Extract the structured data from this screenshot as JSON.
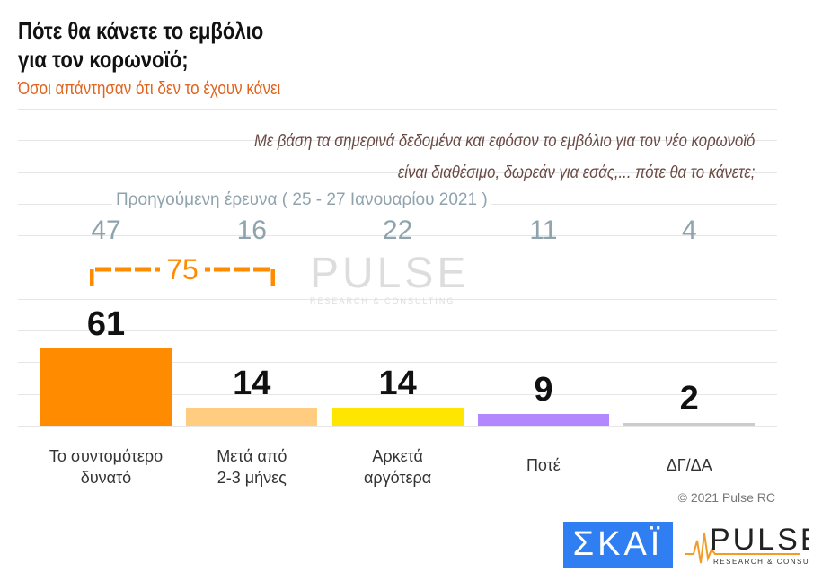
{
  "title_line1": "Πότε θα κάνετε το εμβόλιο",
  "title_line2": "για τον κορωνοϊό;",
  "subtitle": "Όσοι απάντησαν ότι δεν το έχουν κάνει",
  "question_line1": "Με βάση τα σημερινά δεδομένα και εφόσον το εμβόλιο για τον νέο κορωνοϊό",
  "question_line2": "είναι διαθέσιμο, δωρεάν για εσάς,... πότε θα το κάνετε;",
  "previous_label": "Προηγούμενη έρευνα  ( 25 - 27  Ιανουαρίου  2021 )",
  "bracket_total": "75",
  "copyright": "© 2021 Pulse RC",
  "logos": {
    "skai": "ΣΚΑΪ",
    "pulse": "PULSE",
    "pulse_sub": "RESEARCH & CONSULTING"
  },
  "chart_data": {
    "type": "bar",
    "categories": [
      [
        "Το συντομότερο",
        "δυνατό"
      ],
      [
        "Μετά από",
        "2-3 μήνες"
      ],
      [
        "Αρκετά",
        "αργότερα"
      ],
      [
        "Ποτέ",
        ""
      ],
      [
        "ΔΓ/ΔΑ",
        ""
      ]
    ],
    "values": [
      61,
      14,
      14,
      9,
      2
    ],
    "value_labels": [
      "61",
      "14",
      "14",
      "9",
      "2"
    ],
    "previous_values": [
      "47",
      "16",
      "22",
      "11",
      "4"
    ],
    "colors": [
      "#ff8c00",
      "#ffcc80",
      "#ffe600",
      "#b388ff",
      "#cccccc"
    ],
    "grid": true
  }
}
